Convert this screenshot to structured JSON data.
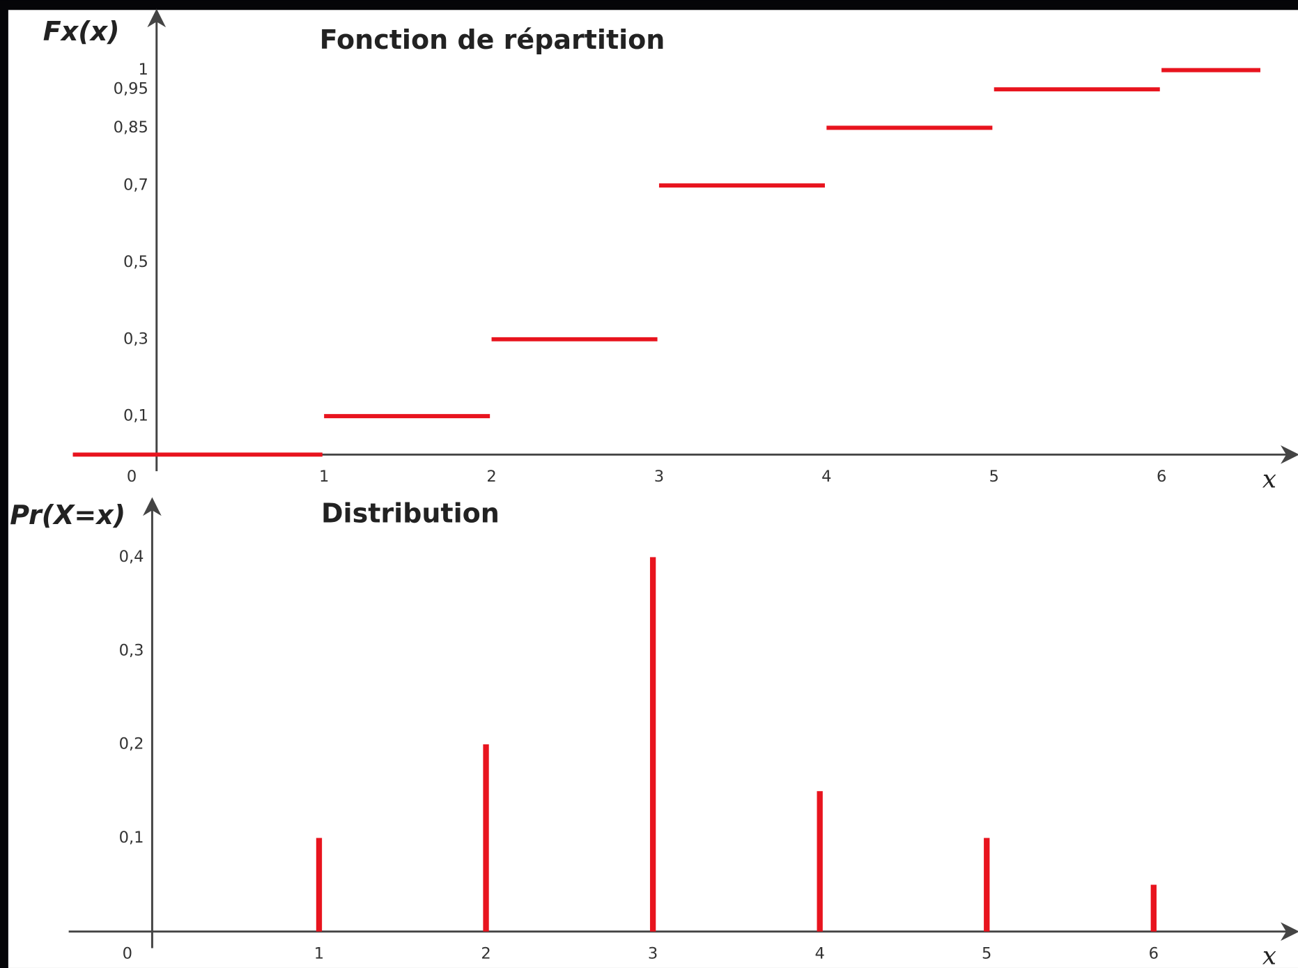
{
  "chart_data": [
    {
      "type": "step",
      "title": "Fonction de répartition",
      "y_label": "Fx(x)",
      "x_label": "x",
      "x": [
        0,
        1,
        2,
        3,
        4,
        5,
        6
      ],
      "values": [
        0,
        0.1,
        0.3,
        0.7,
        0.85,
        0.95,
        1
      ],
      "color": "#e8141e",
      "xlim": [
        -0.5,
        6.8
      ],
      "ylim": [
        0,
        1.15
      ],
      "xticks": [
        0,
        1,
        2,
        3,
        4,
        5,
        6
      ],
      "yticks": [
        {
          "value": 0.1,
          "label": "0,1"
        },
        {
          "value": 0.3,
          "label": "0,3"
        },
        {
          "value": 0.5,
          "label": "0,5"
        },
        {
          "value": 0.7,
          "label": "0,7"
        },
        {
          "value": 0.85,
          "label": "0,85"
        },
        {
          "value": 0.95,
          "label": "0,95"
        },
        1
      ],
      "grid": false
    },
    {
      "type": "stem",
      "title": "Distribution",
      "y_label": "Pr(X=x)",
      "x_label": "x",
      "x": [
        1,
        2,
        3,
        4,
        5,
        6
      ],
      "values": [
        0.1,
        0.2,
        0.4,
        0.15,
        0.1,
        0.05
      ],
      "color": "#e8141e",
      "xlim": [
        -0.5,
        6.85
      ],
      "ylim": [
        0,
        0.46
      ],
      "xticks": [
        0,
        1,
        2,
        3,
        4,
        5,
        6
      ],
      "yticks": [
        {
          "value": 0.1,
          "label": "0,1"
        },
        {
          "value": 0.2,
          "label": "0,2"
        },
        {
          "value": 0.3,
          "label": "0,3"
        },
        {
          "value": 0.4,
          "label": "0,4"
        }
      ],
      "grid": false
    }
  ]
}
